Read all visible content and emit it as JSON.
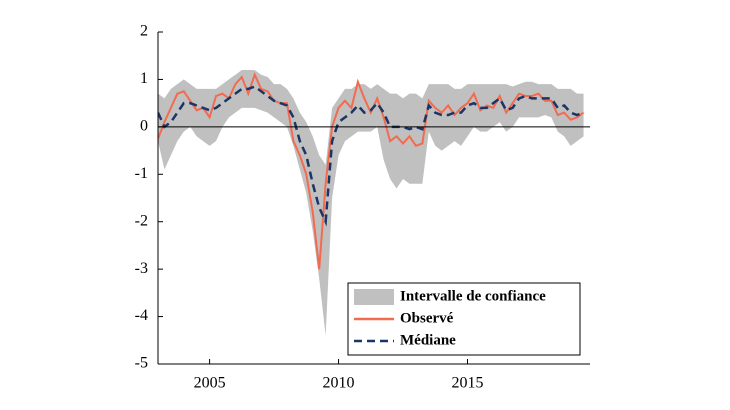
{
  "chart_data": {
    "type": "line",
    "x": [
      2003,
      2003.25,
      2003.5,
      2003.75,
      2004,
      2004.25,
      2004.5,
      2004.75,
      2005,
      2005.25,
      2005.5,
      2005.75,
      2006,
      2006.25,
      2006.5,
      2006.75,
      2007,
      2007.25,
      2007.5,
      2007.75,
      2008,
      2008.25,
      2008.5,
      2008.75,
      2009,
      2009.25,
      2009.5,
      2009.75,
      2010,
      2010.25,
      2010.5,
      2010.75,
      2011,
      2011.25,
      2011.5,
      2011.75,
      2012,
      2012.25,
      2012.5,
      2012.75,
      2013,
      2013.25,
      2013.5,
      2013.75,
      2014,
      2014.25,
      2014.5,
      2014.75,
      2015,
      2015.25,
      2015.5,
      2015.75,
      2016,
      2016.25,
      2016.5,
      2016.75,
      2017,
      2017.25,
      2017.5,
      2017.75,
      2018,
      2018.25,
      2018.5,
      2018.75,
      2019,
      2019.25,
      2019.5
    ],
    "series": [
      {
        "name": "Intervalle de confiance",
        "kind": "band",
        "color": "#c0c0c0",
        "lower": [
          -0.3,
          -0.9,
          -0.6,
          -0.3,
          -0.1,
          0.0,
          -0.2,
          -0.3,
          -0.4,
          -0.3,
          0.0,
          0.2,
          0.3,
          0.4,
          0.4,
          0.4,
          0.35,
          0.3,
          0.2,
          0.1,
          0.0,
          -0.4,
          -0.9,
          -1.4,
          -2.2,
          -3.2,
          -4.4,
          -1.5,
          -0.6,
          -0.3,
          -0.2,
          -0.1,
          -0.1,
          -0.1,
          0.0,
          -0.7,
          -1.1,
          -1.3,
          -1.1,
          -1.2,
          -1.2,
          -1.2,
          -0.1,
          -0.4,
          -0.5,
          -0.4,
          -0.3,
          -0.4,
          -0.2,
          0.0,
          -0.1,
          -0.1,
          0.0,
          0.1,
          -0.1,
          0.0,
          0.2,
          0.2,
          0.2,
          0.2,
          0.25,
          0.2,
          -0.1,
          -0.2,
          -0.4,
          -0.3,
          -0.2
        ],
        "upper": [
          0.7,
          0.6,
          0.8,
          0.9,
          1.0,
          0.9,
          0.8,
          0.8,
          0.8,
          0.8,
          0.9,
          1.0,
          1.1,
          1.2,
          1.2,
          1.2,
          1.1,
          1.05,
          0.9,
          0.9,
          0.8,
          0.6,
          0.3,
          0.1,
          -0.2,
          -0.6,
          -0.8,
          0.4,
          0.6,
          0.8,
          0.8,
          0.9,
          0.9,
          0.8,
          0.9,
          0.8,
          0.7,
          0.7,
          0.6,
          0.7,
          0.7,
          0.6,
          0.9,
          0.9,
          0.9,
          0.9,
          0.8,
          0.8,
          0.9,
          0.9,
          0.9,
          0.9,
          0.9,
          0.9,
          0.9,
          0.85,
          0.9,
          0.95,
          0.95,
          0.9,
          0.9,
          0.9,
          0.8,
          0.8,
          0.8,
          0.7,
          0.7
        ]
      },
      {
        "name": "Observé",
        "kind": "line",
        "color": "#f26b4f",
        "dashed": false,
        "values": [
          -0.25,
          0.1,
          0.4,
          0.7,
          0.75,
          0.55,
          0.35,
          0.4,
          0.2,
          0.65,
          0.7,
          0.6,
          0.9,
          1.05,
          0.7,
          1.1,
          0.8,
          0.75,
          0.55,
          0.5,
          0.5,
          -0.3,
          -0.6,
          -1.0,
          -1.8,
          -3.0,
          -1.2,
          0.0,
          0.4,
          0.55,
          0.4,
          0.95,
          0.6,
          0.3,
          0.6,
          0.2,
          -0.3,
          -0.2,
          -0.35,
          -0.2,
          -0.4,
          -0.35,
          0.55,
          0.4,
          0.3,
          0.45,
          0.25,
          0.4,
          0.5,
          0.7,
          0.35,
          0.45,
          0.4,
          0.65,
          0.3,
          0.5,
          0.7,
          0.65,
          0.65,
          0.7,
          0.55,
          0.55,
          0.25,
          0.3,
          0.15,
          0.2,
          0.3
        ]
      },
      {
        "name": "Médiane",
        "kind": "line",
        "color": "#1b3566",
        "dashed": true,
        "values": [
          0.3,
          0.0,
          0.1,
          0.3,
          0.5,
          0.5,
          0.45,
          0.4,
          0.35,
          0.4,
          0.5,
          0.6,
          0.7,
          0.8,
          0.8,
          0.85,
          0.75,
          0.65,
          0.55,
          0.5,
          0.45,
          0.2,
          -0.3,
          -0.6,
          -1.2,
          -1.7,
          -2.0,
          -0.3,
          0.1,
          0.2,
          0.3,
          0.45,
          0.3,
          0.35,
          0.5,
          0.3,
          0.0,
          0.0,
          0.0,
          -0.05,
          0.0,
          -0.05,
          0.45,
          0.3,
          0.25,
          0.25,
          0.3,
          0.3,
          0.45,
          0.5,
          0.4,
          0.4,
          0.5,
          0.6,
          0.35,
          0.4,
          0.6,
          0.65,
          0.6,
          0.6,
          0.6,
          0.6,
          0.4,
          0.45,
          0.3,
          0.25,
          0.3
        ]
      }
    ],
    "xlim": [
      2003,
      2019.75
    ],
    "xticks": [
      2005,
      2010,
      2015
    ],
    "ylim": [
      -5,
      2
    ],
    "yticks": [
      -5,
      -4,
      -3,
      -2,
      -1,
      0,
      1,
      2
    ],
    "zero_line": true,
    "grid": false,
    "legend": "lower right"
  }
}
